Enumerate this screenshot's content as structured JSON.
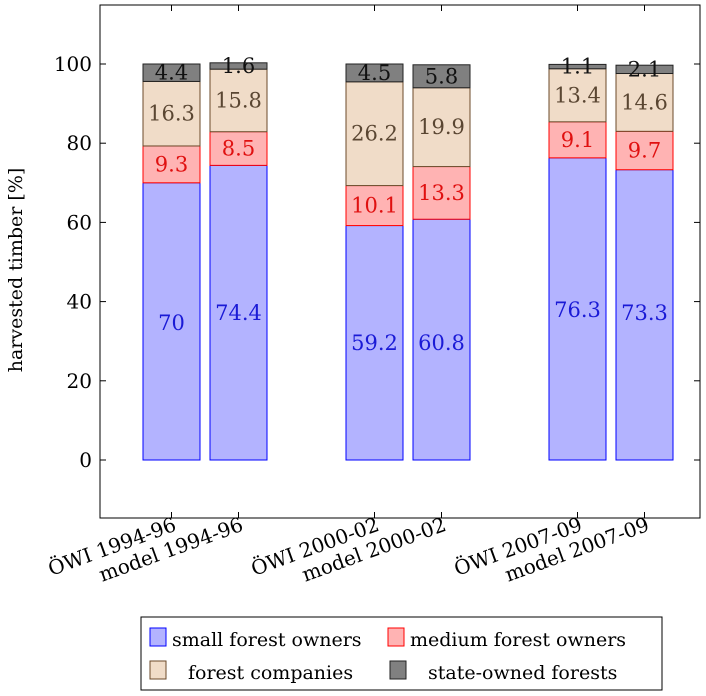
{
  "chart_data": {
    "type": "bar",
    "stacked": true,
    "ylabel": "harvested timber [%]",
    "ylim": [
      -15,
      115
    ],
    "yticks": [
      0,
      20,
      40,
      60,
      80,
      100
    ],
    "categories": [
      "ÖWI 1994-96",
      "model 1994-96",
      "ÖWI 2000-02",
      "model 2000-02",
      "ÖWI 2007-09",
      "model 2007-09"
    ],
    "series": [
      {
        "name": "small forest owners",
        "values": [
          70,
          74.4,
          59.2,
          60.8,
          76.3,
          73.3
        ],
        "fill": "#b3b3ff",
        "stroke": "#0000ff",
        "label_color": "#1a1ad6"
      },
      {
        "name": "medium forest owners",
        "values": [
          9.3,
          8.5,
          10.1,
          13.3,
          9.1,
          9.7
        ],
        "fill": "#ffb3b3",
        "stroke": "#ff0000",
        "label_color": "#e01010"
      },
      {
        "name": "forest companies",
        "values": [
          16.3,
          15.8,
          26.2,
          19.9,
          13.4,
          14.6
        ],
        "fill": "#f0dcc8",
        "stroke": "#6b4a2a",
        "label_color": "#5a4632"
      },
      {
        "name": "state-owned forests",
        "values": [
          4.4,
          1.6,
          4.5,
          5.8,
          1.1,
          2.1
        ],
        "fill": "#808080",
        "stroke": "#222222",
        "label_color": "#111111"
      }
    ],
    "legend": {
      "placement": "bottom-center",
      "columns": 2
    },
    "grid": false
  }
}
